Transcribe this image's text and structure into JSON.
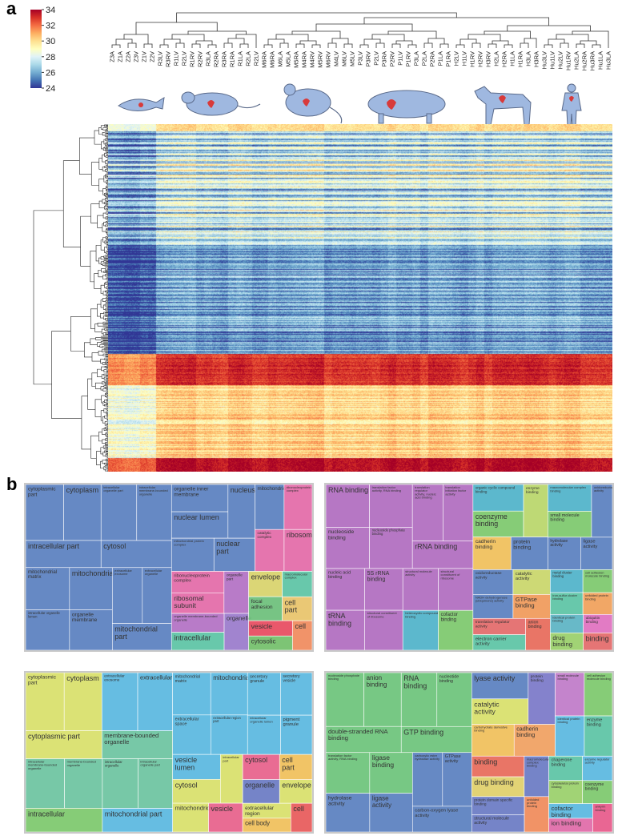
{
  "panels": {
    "a": "a",
    "b": "b"
  },
  "colorbar": {
    "ticks": [
      34,
      32,
      30,
      28,
      26,
      24
    ],
    "min": 24,
    "max": 34,
    "colors": [
      "#313695",
      "#4575b4",
      "#74add1",
      "#abd9e9",
      "#e0f3f8",
      "#ffffbf",
      "#fee090",
      "#fdae61",
      "#f46d43",
      "#d73027",
      "#a50026"
    ]
  },
  "columns": [
    "Z3A",
    "Z1A",
    "Z2A",
    "Z3V",
    "Z1V",
    "Z2V",
    "R3LV",
    "R3RV",
    "R1LV",
    "R2LV",
    "R1RV",
    "R2RV",
    "R3LA",
    "R2RA",
    "R3RA",
    "R1RA",
    "R1LA",
    "R2LA",
    "R2LV",
    "M6RA",
    "M6RA",
    "M6LA",
    "M5LA",
    "M5RA",
    "M4RA",
    "M4RV",
    "M5RV",
    "M6RV",
    "M4LV",
    "M6LV",
    "M5LV",
    "P3LV",
    "P3RV",
    "P2LV",
    "P3RA",
    "P2RV",
    "P1LV",
    "P1RV",
    "P3LA",
    "P2LA",
    "P2RA",
    "P1LA",
    "P1RA",
    "H2LV",
    "H1LV",
    "H1RV",
    "H2RV",
    "H3RV",
    "H2LA",
    "H2RA",
    "H1LA",
    "H1RA",
    "H3LA",
    "H3RA",
    "Hu3LV",
    "Hu1LV",
    "Hu2LV",
    "Hu1RV",
    "Hu2LA",
    "Hu2RA",
    "Hu3RA",
    "Hu1LA",
    "Hu3LA"
  ],
  "species_icons": [
    "zebrafish-icon",
    "rat-icon",
    "mouse-icon",
    "pig-icon",
    "horse-icon",
    "human-icon"
  ],
  "treemaps": [
    {
      "id": "cc-top",
      "cells": [
        {
          "label": "cytoplasmic part",
          "color": "#5a7fc0"
        },
        {
          "label": "cytoplasm",
          "color": "#5a7fc0"
        },
        {
          "label": "intracellular part",
          "color": "#5a7fc0"
        },
        {
          "label": "intracellular organelle part",
          "color": "#5a7fc0"
        },
        {
          "label": "intracellular membrane-bounded organelle",
          "color": "#5a7fc0"
        },
        {
          "label": "cytosol",
          "color": "#5a7fc0"
        },
        {
          "label": "mitochondrial matrix",
          "color": "#5a7fc0"
        },
        {
          "label": "mitochondrial",
          "color": "#5a7fc0"
        },
        {
          "label": "intracellular organelle lumen",
          "color": "#5a7fc0"
        },
        {
          "label": "organelle membrane",
          "color": "#5a7fc0"
        },
        {
          "label": "extracellular exosome",
          "color": "#5a7fc0"
        },
        {
          "label": "extracellular organelle",
          "color": "#5a7fc0"
        },
        {
          "label": "mitochondrial part",
          "color": "#5a7fc0"
        },
        {
          "label": "organelle inner membrane",
          "color": "#5a7fc0"
        },
        {
          "label": "nuclear lumen",
          "color": "#5a7fc0"
        },
        {
          "label": "nucleus",
          "color": "#5a7fc0"
        },
        {
          "label": "mitochondrial protein complex",
          "color": "#5a7fc0"
        },
        {
          "label": "nuclear part",
          "color": "#5a7fc0"
        },
        {
          "label": "mitochondrion",
          "color": "#5a7fc0"
        },
        {
          "label": "ribonucleoprotein complex",
          "color": "#e36aa8"
        },
        {
          "label": "catalytic complex",
          "color": "#e36aa8"
        },
        {
          "label": "ribosome",
          "color": "#e36aa8"
        },
        {
          "label": "ribonucleoprotein complex",
          "color": "#e36aa8"
        },
        {
          "label": "ribosomal subunit",
          "color": "#e36aa8"
        },
        {
          "label": "organelle part",
          "color": "#b370c4"
        },
        {
          "label": "organelle membrane-bounded organelle",
          "color": "#b370c4"
        },
        {
          "label": "intracellular",
          "color": "#5cc4a4"
        },
        {
          "label": "organelle",
          "color": "#9a7acb"
        },
        {
          "label": "envelope",
          "color": "#d9d36b"
        },
        {
          "label": "focal adhesion",
          "color": "#6cc07a"
        },
        {
          "label": "macromolecular complex",
          "color": "#5cc4a4"
        },
        {
          "label": "cell part",
          "color": "#e9c46a"
        },
        {
          "label": "vesicle",
          "color": "#e84a5f"
        },
        {
          "label": "cytosolic part",
          "color": "#72c06a"
        },
        {
          "label": "cell",
          "color": "#f08a5d"
        }
      ]
    },
    {
      "id": "mf-top",
      "cells": [
        {
          "label": "RNA binding",
          "color": "#b06cc0"
        },
        {
          "label": "translation factor activity, RNA binding",
          "color": "#b06cc0"
        },
        {
          "label": "nucleoside binding",
          "color": "#b06cc0"
        },
        {
          "label": "nucleoside phosphate binding",
          "color": "#b06cc0"
        },
        {
          "label": "translation regulator activity, nucleic acid binding",
          "color": "#b06cc0"
        },
        {
          "label": "translation initiation factor activity",
          "color": "#b06cc0"
        },
        {
          "label": "rRNA binding",
          "color": "#b06cc0"
        },
        {
          "label": "nucleic acid binding",
          "color": "#b06cc0"
        },
        {
          "label": "5S rRNA binding",
          "color": "#b06cc0"
        },
        {
          "label": "tRNA binding",
          "color": "#b06cc0"
        },
        {
          "label": "structural constituent of ribosome",
          "color": "#b06cc0"
        },
        {
          "label": "structural molecule activity",
          "color": "#b06cc0"
        },
        {
          "label": "structural constituent of ribosome",
          "color": "#b06cc0"
        },
        {
          "label": "heterocyclic compound binding",
          "color": "#4fb3c9"
        },
        {
          "label": "cofactor binding",
          "color": "#7cc86c"
        },
        {
          "label": "organic cyclic compound binding",
          "color": "#4fb3c9"
        },
        {
          "label": "coenzyme binding",
          "color": "#7cc86c"
        },
        {
          "label": "enzyme binding",
          "color": "#b9d66a"
        },
        {
          "label": "cadherin binding",
          "color": "#f0c05a"
        },
        {
          "label": "protein binding",
          "color": "#5a7fc0"
        },
        {
          "label": "macromolecular complex binding",
          "color": "#4fb3c9"
        },
        {
          "label": "small molecule binding",
          "color": "#7cc86c"
        },
        {
          "label": "oxidoreductase activity",
          "color": "#5a7fc0"
        },
        {
          "label": "hydrolase activity",
          "color": "#5a7fc0"
        },
        {
          "label": "ligase activity",
          "color": "#5a7fc0"
        },
        {
          "label": "oxidoreductase activity",
          "color": "#5a7fc0"
        },
        {
          "label": "NADH dehydrogenase (ubiquinone) activity",
          "color": "#5a7fc0"
        },
        {
          "label": "catalytic activity",
          "color": "#c9d66a"
        },
        {
          "label": "GTPase binding",
          "color": "#f09a5a"
        },
        {
          "label": "translation regulator activity",
          "color": "#e36a6a"
        },
        {
          "label": "electron carrier activity",
          "color": "#5cc4a4"
        },
        {
          "label": "anion binding",
          "color": "#e86a5a"
        },
        {
          "label": "metal cluster binding",
          "color": "#4fb3c9"
        },
        {
          "label": "iron-sulfur cluster binding",
          "color": "#5cc4a4"
        },
        {
          "label": "cell adhesion molecule binding",
          "color": "#7cc86c"
        },
        {
          "label": "unfolded protein binding",
          "color": "#f0a05a"
        },
        {
          "label": "identical protein binding",
          "color": "#5cb4c4"
        },
        {
          "label": "drug binding",
          "color": "#9ad06a"
        },
        {
          "label": "ubiquitin binding",
          "color": "#e070c0"
        },
        {
          "label": "binding",
          "color": "#e36a6a"
        }
      ]
    },
    {
      "id": "cc-bottom",
      "cells": [
        {
          "label": "cytoplasmic part",
          "color": "#d9e06a"
        },
        {
          "label": "cytoplasm",
          "color": "#d9e06a"
        },
        {
          "label": "cytoplasmic part",
          "color": "#d9e06a"
        },
        {
          "label": "extracellular exosome",
          "color": "#5ab8e0"
        },
        {
          "label": "extracellular",
          "color": "#5ab8e0"
        },
        {
          "label": "membrane-bounded organelle",
          "color": "#6cc4a0"
        },
        {
          "label": "intracellular membrane-bounded organelle",
          "color": "#6cc4a0"
        },
        {
          "label": "membrane-bounded organelle",
          "color": "#6cc4a0"
        },
        {
          "label": "intracellular",
          "color": "#7cc86c"
        },
        {
          "label": "intracellular organelle",
          "color": "#6cc4a0"
        },
        {
          "label": "intracellular organelle part",
          "color": "#6cc4a0"
        },
        {
          "label": "mitochondrial part",
          "color": "#5ab8e0"
        },
        {
          "label": "mitochondrial matrix",
          "color": "#5ab8e0"
        },
        {
          "label": "mitochondrial",
          "color": "#5ab8e0"
        },
        {
          "label": "extracellular space",
          "color": "#5ab8e0"
        },
        {
          "label": "extracellular region part",
          "color": "#5ab8e0"
        },
        {
          "label": "secretory granule",
          "color": "#5ab8e0"
        },
        {
          "label": "secretory vesicle",
          "color": "#5ab8e0"
        },
        {
          "label": "intracellular organelle lumen",
          "color": "#5ab8e0"
        },
        {
          "label": "pigment granule",
          "color": "#5ab8e0"
        },
        {
          "label": "vesicle lumen",
          "color": "#5ab8e0"
        },
        {
          "label": "cytosol",
          "color": "#d9e06a"
        },
        {
          "label": "intracellular part",
          "color": "#d9e06a"
        },
        {
          "label": "mitochondrion",
          "color": "#d9e06a"
        },
        {
          "label": "vesicle",
          "color": "#e8608a"
        },
        {
          "label": "cytosol",
          "color": "#e8608a"
        },
        {
          "label": "organelle",
          "color": "#6a7ac4"
        },
        {
          "label": "cell part",
          "color": "#f0c05a"
        },
        {
          "label": "envelope",
          "color": "#d9e06a"
        },
        {
          "label": "extracellular region",
          "color": "#d9e06a"
        },
        {
          "label": "cell body",
          "color": "#f0c05a"
        },
        {
          "label": "cell",
          "color": "#e85a5a"
        }
      ]
    },
    {
      "id": "mf-bottom",
      "cells": [
        {
          "label": "nucleoside phosphate binding",
          "color": "#6cc47a"
        },
        {
          "label": "anion binding",
          "color": "#6cc47a"
        },
        {
          "label": "double-stranded RNA binding",
          "color": "#6cc47a"
        },
        {
          "label": "RNA binding",
          "color": "#6cc47a"
        },
        {
          "label": "nucleotide binding",
          "color": "#6cc47a"
        },
        {
          "label": "GTP binding",
          "color": "#6cc47a"
        },
        {
          "label": "translation factor activity, RNA binding",
          "color": "#6cc47a"
        },
        {
          "label": "ligase binding",
          "color": "#6cc47a"
        },
        {
          "label": "hydrolase activity",
          "color": "#5a7fc0"
        },
        {
          "label": "ligase activity",
          "color": "#5a7fc0"
        },
        {
          "label": "carboxylic ester hydrolase activity",
          "color": "#5a7fc0"
        },
        {
          "label": "GTPase activity",
          "color": "#5a7fc0"
        },
        {
          "label": "carbon-oxygen lyase activity",
          "color": "#5a7fc0"
        },
        {
          "label": "lyase activity",
          "color": "#5a7fc0"
        },
        {
          "label": "catalytic activity",
          "color": "#d9e06a"
        },
        {
          "label": "protein binding",
          "color": "#7a78c8"
        },
        {
          "label": "carbohydrate derivative binding",
          "color": "#f0c05a"
        },
        {
          "label": "cadherin binding",
          "color": "#f0a060"
        },
        {
          "label": "small molecule binding",
          "color": "#c07ac8"
        },
        {
          "label": "cell adhesion molecule binding",
          "color": "#7cc86c"
        },
        {
          "label": "identical protein binding",
          "color": "#5ab8e0"
        },
        {
          "label": "enzyme binding",
          "color": "#5cc4a4"
        },
        {
          "label": "binding",
          "color": "#e86a5a"
        },
        {
          "label": "drug binding",
          "color": "#e0d06a"
        },
        {
          "label": "macromolecular complex binding",
          "color": "#6a7ac4"
        },
        {
          "label": "protein domain specific binding",
          "color": "#6a7ac4"
        },
        {
          "label": "structural molecule activity",
          "color": "#6a7ac4"
        },
        {
          "label": "unfolded protein binding",
          "color": "#f08a5a"
        },
        {
          "label": "chaperone binding",
          "color": "#5cc4a4"
        },
        {
          "label": "cytoskeletal protein binding",
          "color": "#9ad06a"
        },
        {
          "label": "enzyme regulator activity",
          "color": "#5ab8e0"
        },
        {
          "label": "coenzyme binding",
          "color": "#7cc86c"
        },
        {
          "label": "cofactor binding",
          "color": "#5ab8e0"
        },
        {
          "label": "ion binding",
          "color": "#e06aa8"
        },
        {
          "label": "ankyrin binding",
          "color": "#e85a8a"
        }
      ]
    }
  ]
}
